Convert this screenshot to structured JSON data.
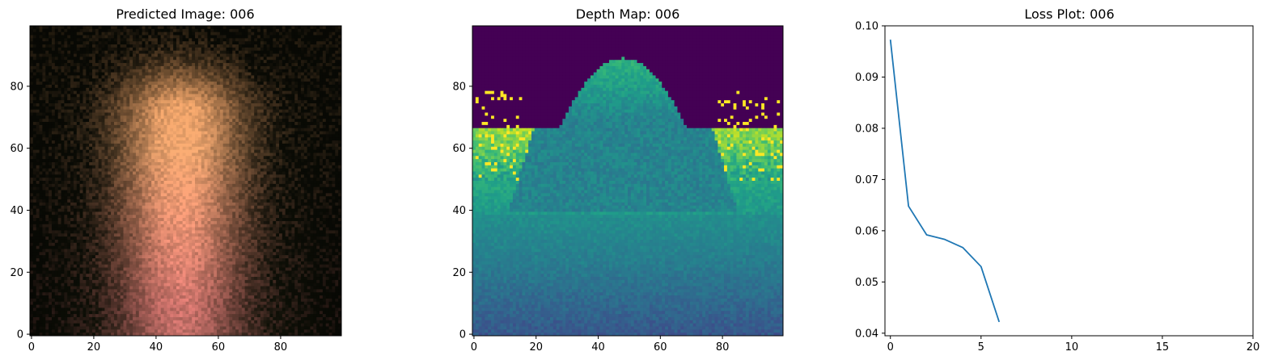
{
  "chart_data": [
    {
      "type": "heatmap",
      "title": "Predicted Image: 006",
      "xlabel": "",
      "ylabel": "",
      "xlim": [
        -0.5,
        99.5
      ],
      "ylim": [
        99.5,
        -0.5
      ],
      "x_ticks": [
        "0",
        "20",
        "40",
        "60",
        "80"
      ],
      "y_ticks": [
        "0",
        "20",
        "40",
        "60",
        "80"
      ],
      "image": {
        "width": 100,
        "height": 100,
        "colormap": "rgb"
      }
    },
    {
      "type": "heatmap",
      "title": "Depth Map: 006",
      "xlabel": "",
      "ylabel": "",
      "xlim": [
        -0.5,
        99.5
      ],
      "ylim": [
        99.5,
        -0.5
      ],
      "x_ticks": [
        "0",
        "20",
        "40",
        "60",
        "80"
      ],
      "y_ticks": [
        "0",
        "20",
        "40",
        "60",
        "80"
      ],
      "image": {
        "width": 100,
        "height": 100,
        "colormap": "viridis"
      }
    },
    {
      "type": "line",
      "title": "Loss Plot: 006",
      "xlabel": "",
      "ylabel": "",
      "xlim": [
        -0.3,
        20
      ],
      "ylim": [
        0.0395,
        0.1
      ],
      "x_ticks": [
        "0",
        "5",
        "10",
        "15",
        "20"
      ],
      "y_ticks": [
        "0.04",
        "0.05",
        "0.06",
        "0.07",
        "0.08",
        "0.09",
        "0.10"
      ],
      "series": [
        {
          "color": "#1f77b4",
          "x": [
            0,
            1,
            2,
            3,
            4,
            5,
            6
          ],
          "values": [
            0.0973,
            0.0648,
            0.0592,
            0.0583,
            0.0567,
            0.053,
            0.0422
          ]
        }
      ]
    }
  ]
}
